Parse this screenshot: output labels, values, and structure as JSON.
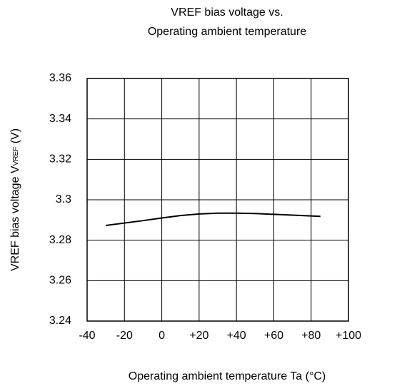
{
  "chart_data": {
    "type": "line",
    "title": [
      "VREF bias voltage vs.",
      "Operating ambient temperature"
    ],
    "x_label": "Operating ambient temperature Ta (°C)",
    "y_label": {
      "text": "VREF bias voltage V",
      "subscript": "VREF",
      "suffix": " (V)"
    },
    "x": [
      -30,
      -10,
      0,
      10,
      20,
      30,
      40,
      50,
      60,
      70,
      85
    ],
    "series": [
      {
        "color": "#000000",
        "values": [
          3.2873,
          3.2897,
          3.291,
          3.2922,
          3.293,
          3.2934,
          3.2934,
          3.2932,
          3.2928,
          3.2924,
          3.2918
        ]
      }
    ],
    "xlim": [
      -40,
      100
    ],
    "xticks": [
      -40,
      -20,
      0,
      {
        "value": 20,
        "label": "+20"
      },
      {
        "value": 40,
        "label": "+40"
      },
      {
        "value": 60,
        "label": "+60"
      },
      {
        "value": 80,
        "label": "+80"
      },
      {
        "value": 100,
        "label": "+100"
      }
    ],
    "ylim": [
      3.24,
      3.36
    ],
    "yticks": [
      3.24,
      3.26,
      3.28,
      3.3,
      3.32,
      3.34,
      3.36
    ],
    "grid": true
  }
}
